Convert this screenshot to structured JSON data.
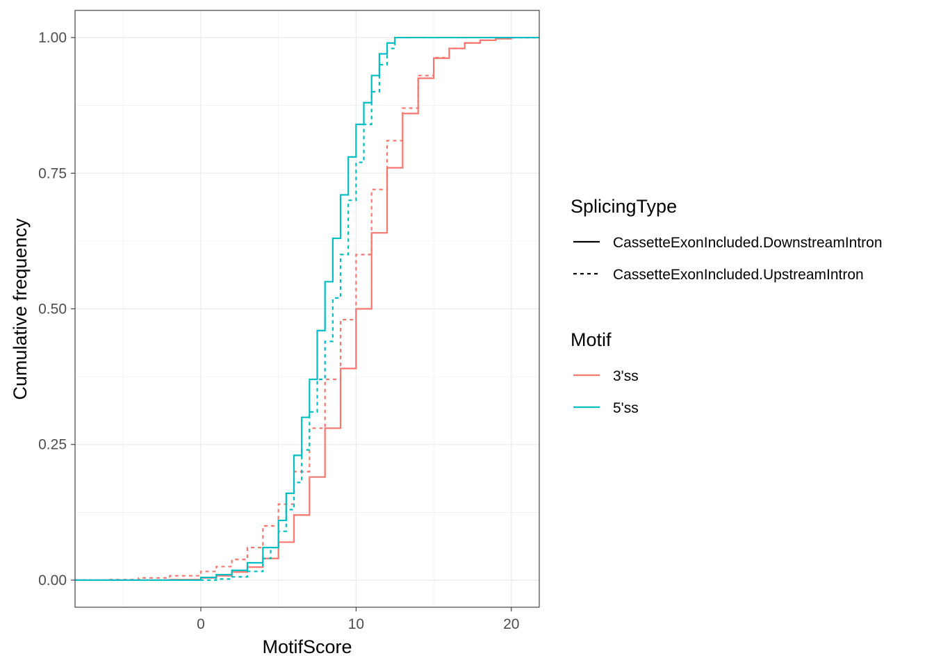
{
  "chart_data": {
    "type": "line",
    "step": true,
    "xlabel": "MotifScore",
    "ylabel": "Cumulative frequency",
    "xlim": [
      -8.1,
      21.8
    ],
    "ylim": [
      -0.05,
      1.05
    ],
    "x_ticks": [
      0,
      10,
      20
    ],
    "x_tick_labels": [
      "0",
      "10",
      "20"
    ],
    "y_ticks": [
      0,
      0.25,
      0.5,
      0.75,
      1.0
    ],
    "y_tick_labels": [
      "0.00",
      "0.25",
      "0.50",
      "0.75",
      "1.00"
    ],
    "grid": true,
    "legend_placement": "right",
    "legend": {
      "linetype_title": "SplicingType",
      "linetype_entries": [
        {
          "label": "CassetteExonIncluded.DownstreamIntron",
          "dash": "solid"
        },
        {
          "label": "CassetteExonIncluded.UpstreamIntron",
          "dash": "dashed"
        }
      ],
      "color_title": "Motif",
      "color_entries": [
        {
          "label": "3'ss",
          "color": "#F8766D"
        },
        {
          "label": "5'ss",
          "color": "#00BFC4"
        }
      ]
    },
    "series": [
      {
        "motif": "3'ss",
        "splicing_type": "CassetteExonIncluded.DownstreamIntron",
        "color": "#F8766D",
        "dash": "solid",
        "points": [
          [
            -8.1,
            0
          ],
          [
            -4,
            0
          ],
          [
            -2,
            0.001
          ],
          [
            0,
            0.004
          ],
          [
            1,
            0.008
          ],
          [
            2,
            0.015
          ],
          [
            3,
            0.024
          ],
          [
            4,
            0.04
          ],
          [
            5,
            0.07
          ],
          [
            6,
            0.12
          ],
          [
            7,
            0.19
          ],
          [
            8,
            0.28
          ],
          [
            9,
            0.39
          ],
          [
            10,
            0.5
          ],
          [
            11,
            0.64
          ],
          [
            12,
            0.76
          ],
          [
            13,
            0.86
          ],
          [
            14,
            0.925
          ],
          [
            15,
            0.962
          ],
          [
            16,
            0.98
          ],
          [
            17,
            0.99
          ],
          [
            18,
            0.995
          ],
          [
            19,
            0.998
          ],
          [
            20,
            1.0
          ],
          [
            21.8,
            1.0
          ]
        ]
      },
      {
        "motif": "3'ss",
        "splicing_type": "CassetteExonIncluded.UpstreamIntron",
        "color": "#F8766D",
        "dash": "dashed",
        "points": [
          [
            -8.1,
            0
          ],
          [
            -6,
            0.001
          ],
          [
            -4,
            0.004
          ],
          [
            -2,
            0.008
          ],
          [
            0,
            0.016
          ],
          [
            1,
            0.025
          ],
          [
            2,
            0.038
          ],
          [
            3,
            0.06
          ],
          [
            4,
            0.1
          ],
          [
            5,
            0.14
          ],
          [
            6,
            0.2
          ],
          [
            7,
            0.28
          ],
          [
            8,
            0.37
          ],
          [
            9,
            0.48
          ],
          [
            10,
            0.6
          ],
          [
            11,
            0.72
          ],
          [
            12,
            0.81
          ],
          [
            13,
            0.87
          ],
          [
            14,
            0.93
          ],
          [
            15,
            0.963
          ],
          [
            16,
            0.98
          ],
          [
            17,
            0.99
          ],
          [
            18,
            0.995
          ],
          [
            19,
            0.998
          ],
          [
            20,
            1.0
          ],
          [
            21.8,
            1.0
          ]
        ]
      },
      {
        "motif": "5'ss",
        "splicing_type": "CassetteExonIncluded.DownstreamIntron",
        "color": "#00BFC4",
        "dash": "solid",
        "points": [
          [
            -8.1,
            0
          ],
          [
            -2,
            0
          ],
          [
            0,
            0.005
          ],
          [
            1,
            0.01
          ],
          [
            2,
            0.018
          ],
          [
            3,
            0.032
          ],
          [
            4,
            0.06
          ],
          [
            5,
            0.11
          ],
          [
            5.5,
            0.16
          ],
          [
            6,
            0.23
          ],
          [
            6.5,
            0.3
          ],
          [
            7,
            0.37
          ],
          [
            7.5,
            0.46
          ],
          [
            8,
            0.55
          ],
          [
            8.5,
            0.63
          ],
          [
            9,
            0.71
          ],
          [
            9.5,
            0.78
          ],
          [
            10,
            0.84
          ],
          [
            10.5,
            0.88
          ],
          [
            11,
            0.93
          ],
          [
            11.5,
            0.97
          ],
          [
            12,
            0.99
          ],
          [
            12.5,
            1.0
          ],
          [
            21.8,
            1.0
          ]
        ]
      },
      {
        "motif": "5'ss",
        "splicing_type": "CassetteExonIncluded.UpstreamIntron",
        "color": "#00BFC4",
        "dash": "dashed",
        "points": [
          [
            -8.1,
            0
          ],
          [
            0,
            0
          ],
          [
            1,
            0.002
          ],
          [
            2,
            0.006
          ],
          [
            3,
            0.016
          ],
          [
            4,
            0.04
          ],
          [
            4.5,
            0.06
          ],
          [
            5,
            0.09
          ],
          [
            5.5,
            0.13
          ],
          [
            6,
            0.18
          ],
          [
            6.5,
            0.24
          ],
          [
            7,
            0.31
          ],
          [
            7.5,
            0.37
          ],
          [
            8,
            0.44
          ],
          [
            8.5,
            0.52
          ],
          [
            9,
            0.6
          ],
          [
            9.5,
            0.7
          ],
          [
            10,
            0.77
          ],
          [
            10.5,
            0.84
          ],
          [
            11,
            0.9
          ],
          [
            11.5,
            0.95
          ],
          [
            12,
            0.98
          ],
          [
            12.5,
            1.0
          ],
          [
            21.8,
            1.0
          ]
        ]
      }
    ]
  }
}
